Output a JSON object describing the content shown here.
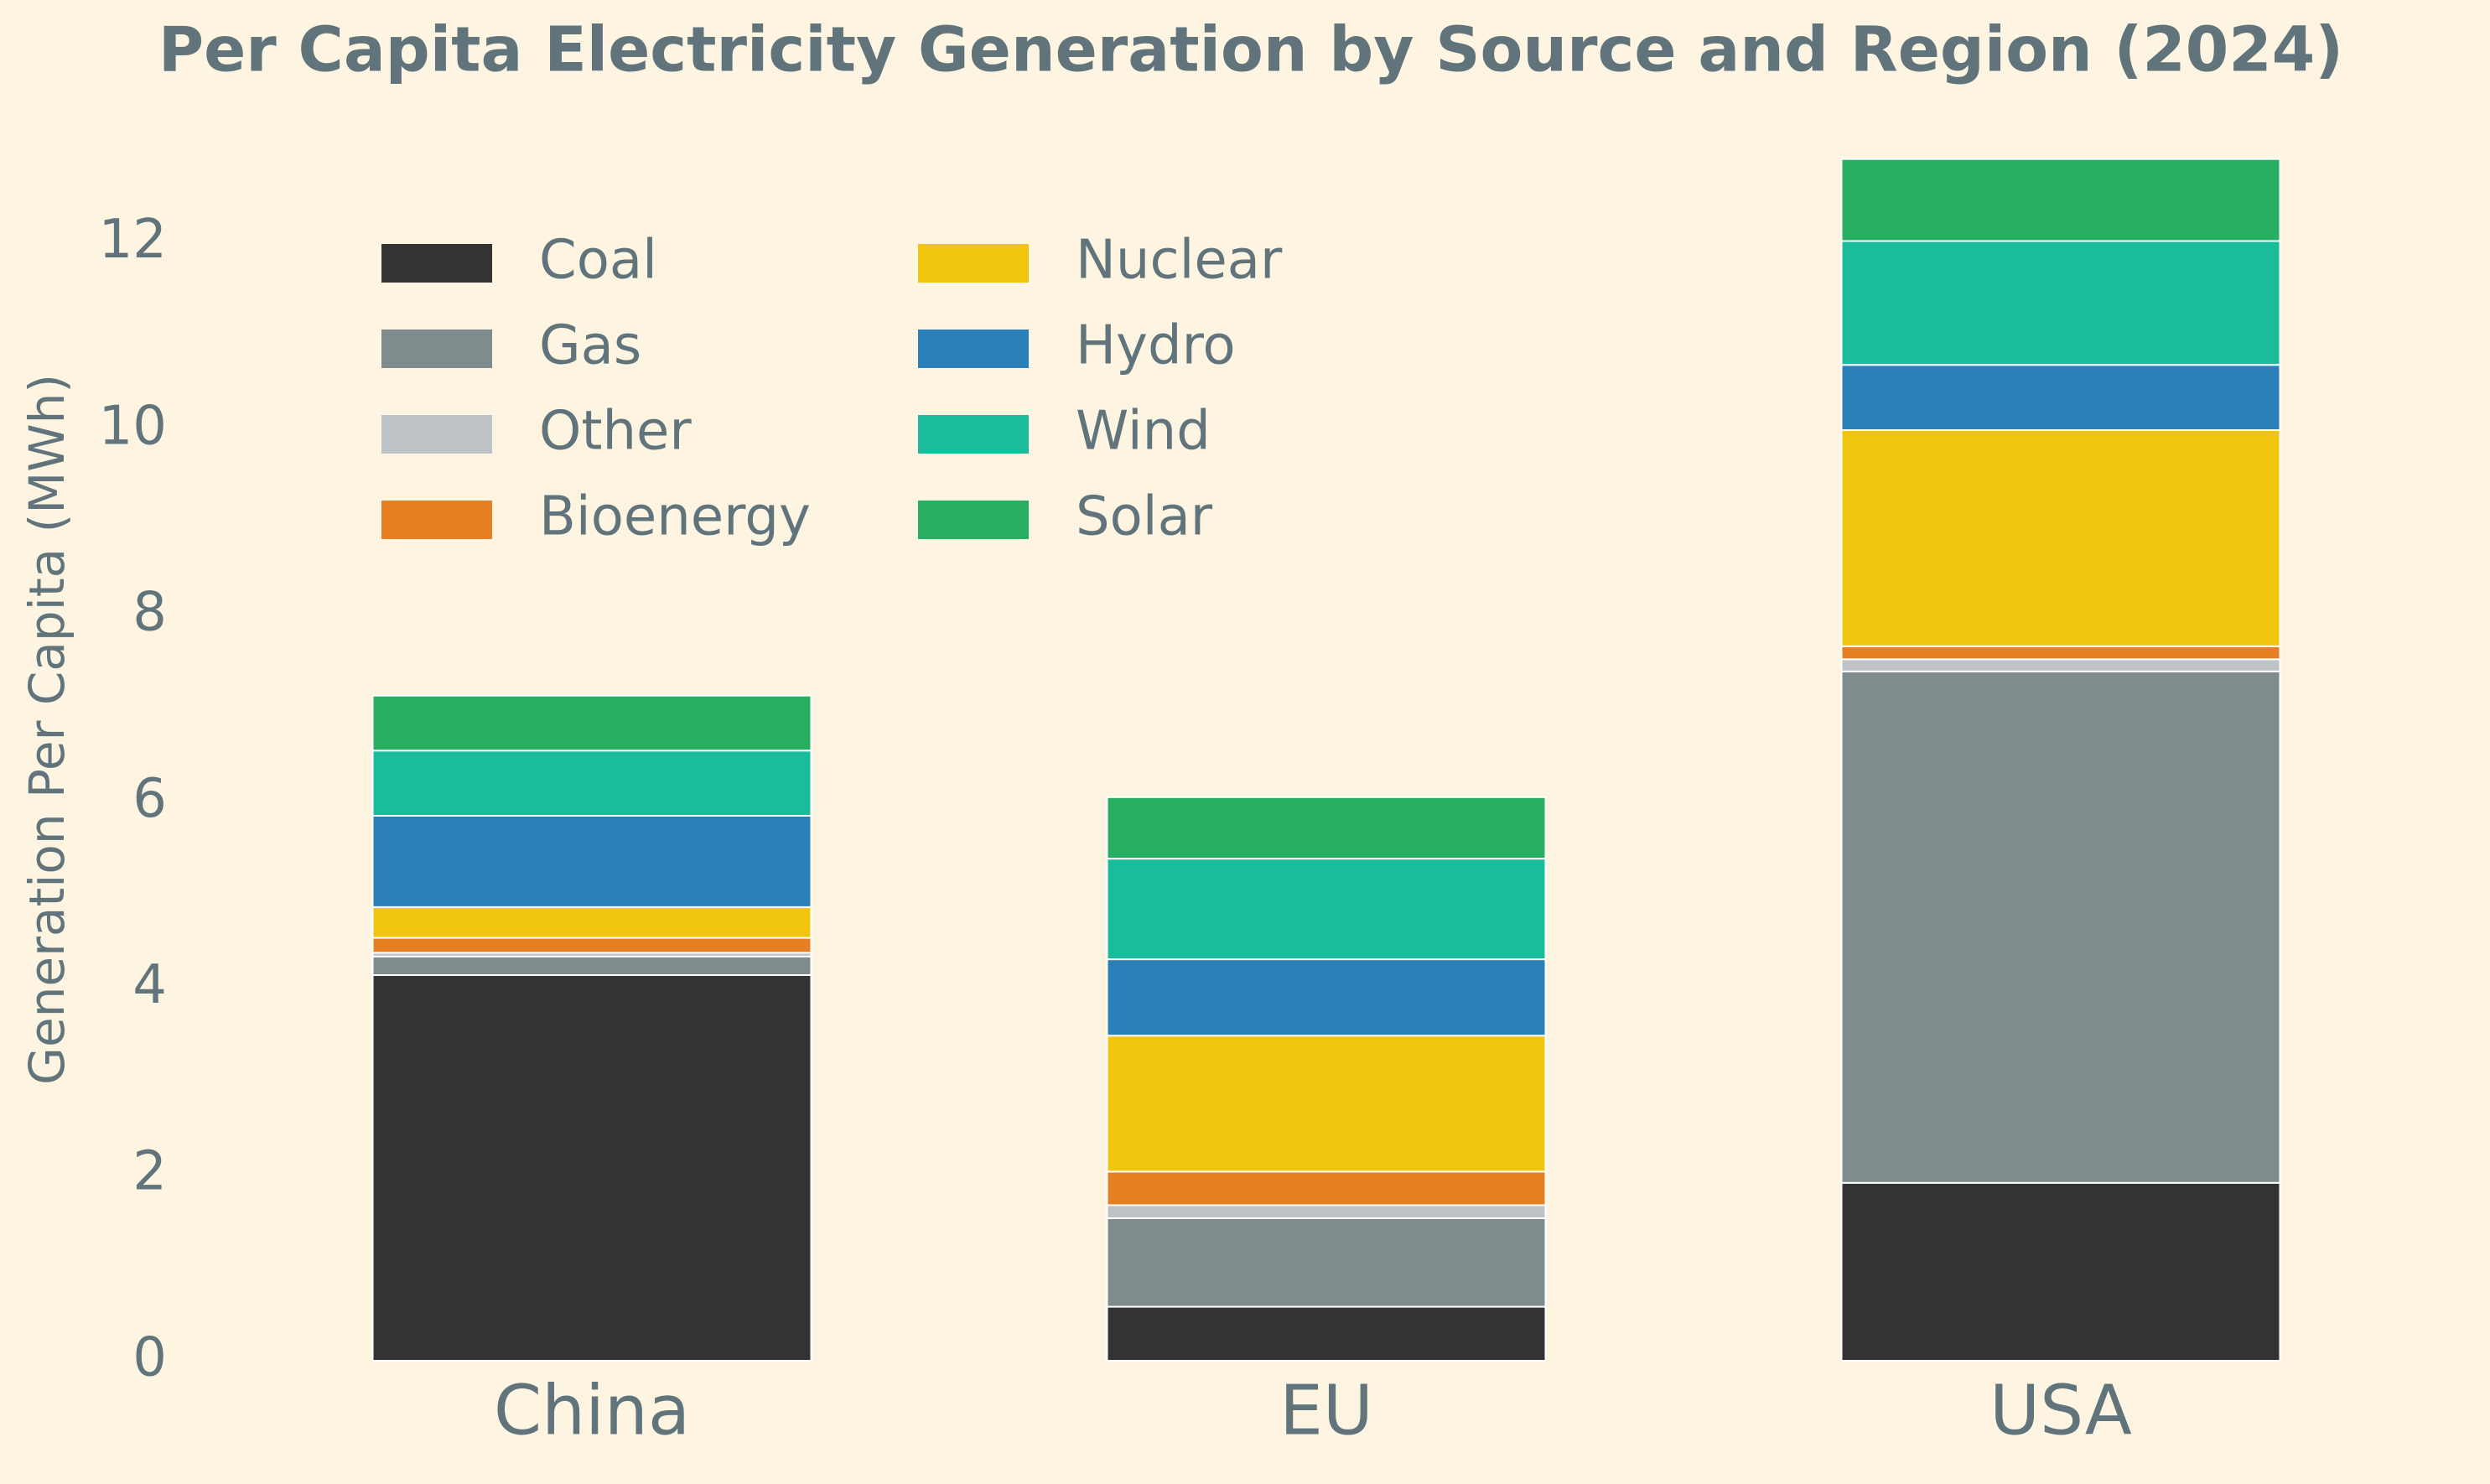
{
  "chart_data": {
    "type": "stacked_bar",
    "title": "Per Capita Electricity Generation by Source and Region (2024)",
    "y_label": "Generation Per Capita (MWh)",
    "categories": [
      "China",
      "EU",
      "USA"
    ],
    "series": [
      {
        "name": "Coal",
        "color": "#333333",
        "values": [
          4.14,
          0.58,
          1.91
        ]
      },
      {
        "name": "Gas",
        "color": "#7f8c8d",
        "values": [
          0.2,
          0.95,
          5.49
        ]
      },
      {
        "name": "Other",
        "color": "#bdc3c7",
        "values": [
          0.04,
          0.14,
          0.13
        ]
      },
      {
        "name": "Bioenergy",
        "color": "#e67e22",
        "values": [
          0.16,
          0.36,
          0.14
        ]
      },
      {
        "name": "Nuclear",
        "color": "#f1c40f",
        "values": [
          0.33,
          1.46,
          2.32
        ]
      },
      {
        "name": "Hydro",
        "color": "#2980b9",
        "values": [
          0.98,
          0.82,
          0.7
        ]
      },
      {
        "name": "Wind",
        "color": "#1abc9c",
        "values": [
          0.7,
          1.08,
          1.33
        ]
      },
      {
        "name": "Solar",
        "color": "#27ae60",
        "values": [
          0.59,
          0.66,
          0.88
        ]
      }
    ],
    "ylim": [
      0,
      13.5
    ],
    "yticks": [
      0,
      2,
      4,
      6,
      8,
      10,
      12
    ],
    "grid": false,
    "legend": "upper left"
  }
}
